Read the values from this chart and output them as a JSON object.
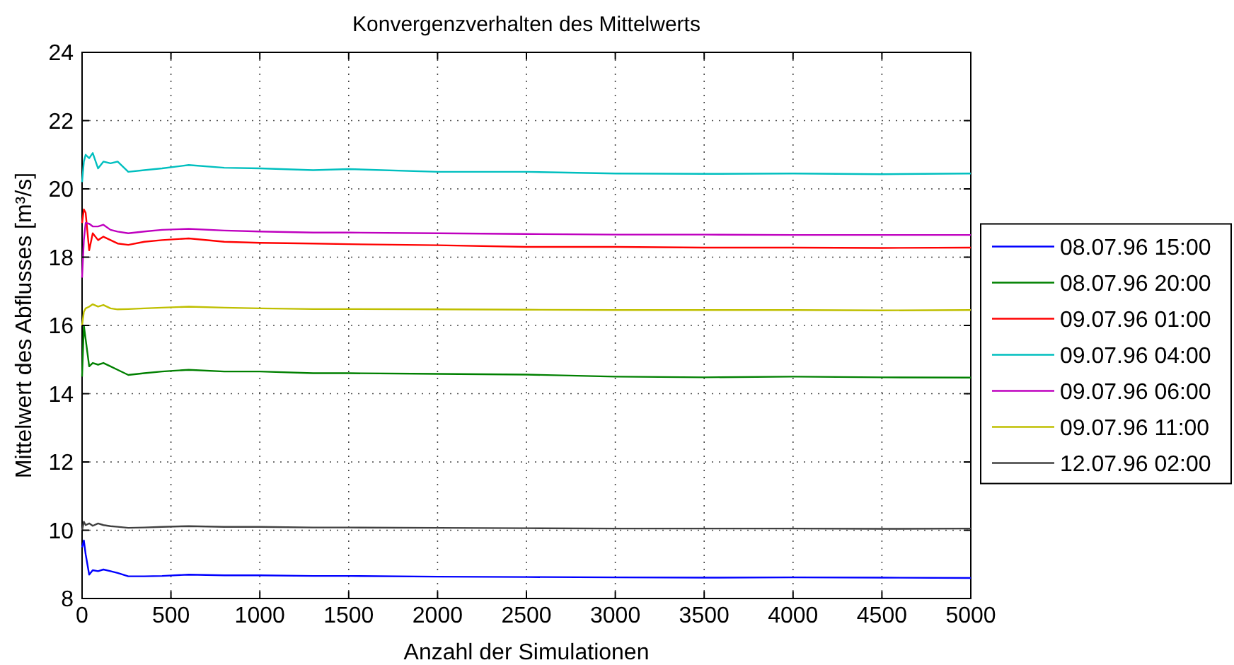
{
  "chart_data": {
    "type": "line",
    "title": "Konvergenzverhalten des Mittelwerts",
    "xlabel": "Anzahl der Simulationen",
    "ylabel": "Mittelwert des Abflusses [m³/s]",
    "xlim": [
      0,
      5000
    ],
    "ylim": [
      8,
      24
    ],
    "xticks": [
      0,
      500,
      1000,
      1500,
      2000,
      2500,
      3000,
      3500,
      4000,
      4500,
      5000
    ],
    "yticks": [
      8,
      10,
      12,
      14,
      16,
      18,
      20,
      22,
      24
    ],
    "grid": true,
    "legend": "right",
    "line_style": "solid",
    "marker": "none",
    "series": [
      {
        "name": "08.07.96 15:00",
        "color": "#0000ff",
        "x": [
          0,
          10,
          20,
          40,
          60,
          90,
          120,
          160,
          200,
          260,
          350,
          450,
          600,
          800,
          1000,
          1300,
          1500,
          2000,
          2500,
          3000,
          3500,
          4000,
          4500,
          5000
        ],
        "values": [
          9.5,
          9.7,
          9.3,
          8.7,
          8.83,
          8.8,
          8.85,
          8.8,
          8.75,
          8.65,
          8.65,
          8.66,
          8.7,
          8.68,
          8.68,
          8.66,
          8.66,
          8.64,
          8.63,
          8.62,
          8.61,
          8.62,
          8.61,
          8.6
        ]
      },
      {
        "name": "08.07.96 20:00",
        "color": "#008000",
        "x": [
          0,
          10,
          20,
          40,
          60,
          90,
          120,
          160,
          200,
          260,
          350,
          450,
          600,
          800,
          1000,
          1300,
          1500,
          2000,
          2500,
          3000,
          3500,
          4000,
          4500,
          5000
        ],
        "values": [
          14.5,
          16.0,
          15.6,
          14.8,
          14.9,
          14.85,
          14.9,
          14.8,
          14.7,
          14.55,
          14.6,
          14.65,
          14.7,
          14.65,
          14.65,
          14.6,
          14.6,
          14.58,
          14.56,
          14.5,
          14.48,
          14.5,
          14.48,
          14.47
        ]
      },
      {
        "name": "09.07.96 01:00",
        "color": "#ff0000",
        "x": [
          0,
          10,
          20,
          40,
          60,
          90,
          120,
          160,
          200,
          260,
          350,
          450,
          600,
          800,
          1000,
          1300,
          1500,
          2000,
          2500,
          3000,
          3500,
          4000,
          4500,
          5000
        ],
        "values": [
          19.0,
          19.4,
          19.3,
          18.2,
          18.7,
          18.5,
          18.6,
          18.5,
          18.4,
          18.36,
          18.45,
          18.5,
          18.55,
          18.45,
          18.42,
          18.4,
          18.38,
          18.35,
          18.3,
          18.3,
          18.28,
          18.28,
          18.27,
          18.28
        ]
      },
      {
        "name": "09.07.96 04:00",
        "color": "#00bfbf",
        "x": [
          0,
          10,
          20,
          40,
          60,
          90,
          120,
          160,
          200,
          260,
          350,
          450,
          600,
          800,
          1000,
          1300,
          1500,
          2000,
          2500,
          3000,
          3500,
          4000,
          4500,
          5000
        ],
        "values": [
          20.2,
          20.8,
          21.0,
          20.9,
          21.05,
          20.6,
          20.8,
          20.75,
          20.8,
          20.5,
          20.55,
          20.6,
          20.7,
          20.62,
          20.6,
          20.55,
          20.58,
          20.5,
          20.5,
          20.45,
          20.44,
          20.45,
          20.43,
          20.45
        ]
      },
      {
        "name": "09.07.96 06:00",
        "color": "#bf00bf",
        "x": [
          0,
          10,
          20,
          40,
          60,
          90,
          120,
          160,
          200,
          260,
          350,
          450,
          600,
          800,
          1000,
          1300,
          1500,
          2000,
          2500,
          3000,
          3500,
          4000,
          4500,
          5000
        ],
        "values": [
          17.4,
          18.5,
          19.0,
          18.98,
          18.9,
          18.9,
          18.95,
          18.8,
          18.75,
          18.7,
          18.75,
          18.8,
          18.83,
          18.78,
          18.75,
          18.72,
          18.72,
          18.7,
          18.68,
          18.66,
          18.66,
          18.65,
          18.65,
          18.65
        ]
      },
      {
        "name": "09.07.96 11:00",
        "color": "#bfbf00",
        "x": [
          0,
          10,
          20,
          40,
          60,
          90,
          120,
          160,
          200,
          260,
          350,
          450,
          600,
          800,
          1000,
          1300,
          1500,
          2000,
          2500,
          3000,
          3500,
          4000,
          4500,
          5000
        ],
        "values": [
          16.0,
          16.4,
          16.5,
          16.55,
          16.62,
          16.55,
          16.6,
          16.5,
          16.47,
          16.48,
          16.5,
          16.52,
          16.55,
          16.52,
          16.5,
          16.48,
          16.48,
          16.47,
          16.46,
          16.45,
          16.45,
          16.45,
          16.44,
          16.45
        ]
      },
      {
        "name": "12.07.96 02:00",
        "color": "#404040",
        "x": [
          0,
          10,
          20,
          40,
          60,
          90,
          120,
          160,
          200,
          260,
          350,
          450,
          600,
          800,
          1000,
          1300,
          1500,
          2000,
          2500,
          3000,
          3500,
          4000,
          4500,
          5000
        ],
        "values": [
          10.0,
          10.25,
          10.15,
          10.2,
          10.13,
          10.2,
          10.15,
          10.12,
          10.1,
          10.07,
          10.08,
          10.1,
          10.12,
          10.1,
          10.1,
          10.08,
          10.08,
          10.07,
          10.06,
          10.05,
          10.05,
          10.05,
          10.04,
          10.05
        ]
      }
    ]
  }
}
